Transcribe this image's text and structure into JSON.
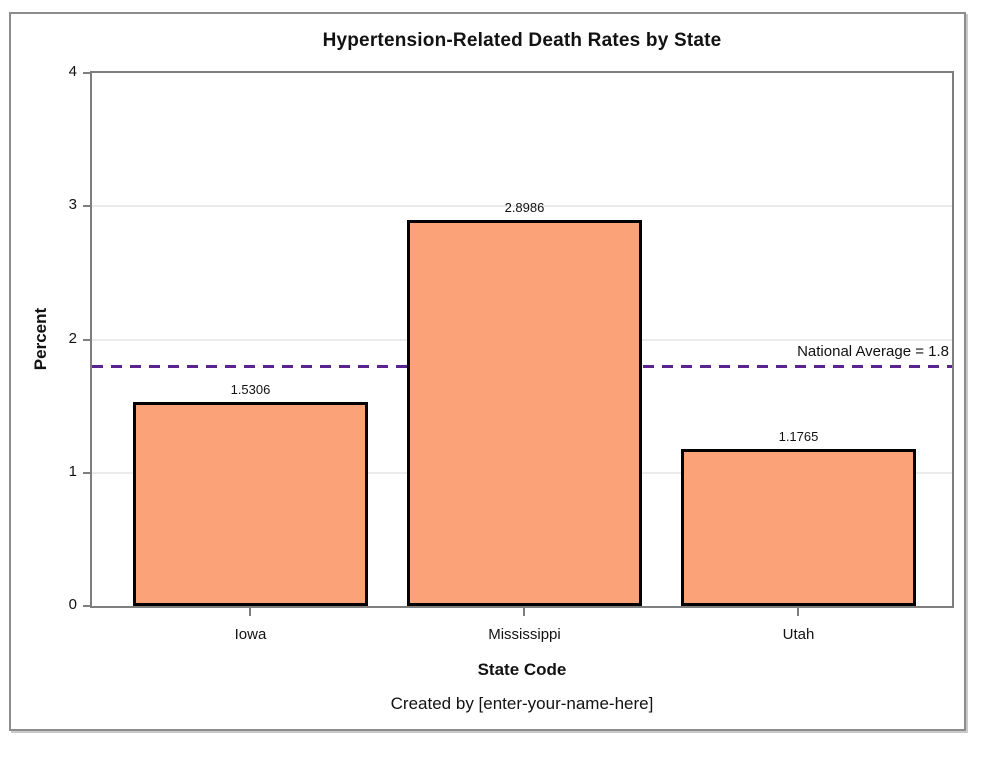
{
  "chart_data": {
    "type": "bar",
    "title": "Hypertension-Related Death Rates by State",
    "xlabel": "State Code",
    "ylabel": "Percent",
    "footnote": "Created by [enter-your-name-here]",
    "categories": [
      "Iowa",
      "Mississippi",
      "Utah"
    ],
    "values": [
      1.5306,
      2.8986,
      1.1765
    ],
    "value_labels": [
      "1.5306",
      "2.8986",
      "1.1765"
    ],
    "ylim": [
      0,
      4
    ],
    "yticks": [
      0,
      1,
      2,
      3,
      4
    ],
    "ytick_labels": [
      "0",
      "1",
      "2",
      "3",
      "4"
    ],
    "grid": true,
    "legend": "none",
    "reference_line": {
      "value": 1.8,
      "label": "National Average = 1.8",
      "style": "dashed"
    },
    "colors": {
      "bar_fill": "#FCA278",
      "bar_border": "#000000",
      "reference_line": "#5A2390",
      "gridline": "#EBEBEB",
      "axis_wall": "#7E7E7E",
      "text": "#121212"
    }
  }
}
